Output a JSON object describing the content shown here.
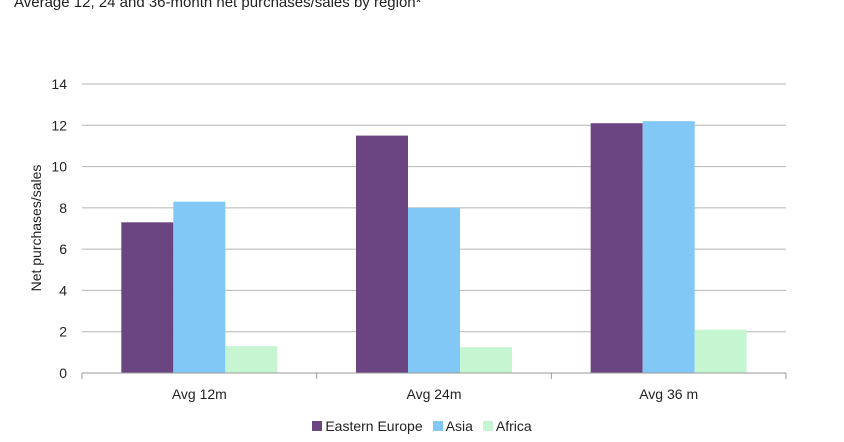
{
  "title": "Average 12, 24 and 36-month net purchases/sales by region*",
  "chart_data": {
    "type": "bar",
    "title": "Average 12, 24 and 36-month net purchases/sales by region*",
    "xlabel": "",
    "ylabel": "Net purchases/sales",
    "ylim": [
      0,
      14
    ],
    "yticks": [
      0,
      2,
      4,
      6,
      8,
      10,
      12,
      14
    ],
    "grid": true,
    "legend_position": "bottom",
    "categories": [
      "Avg 12m",
      "Avg 24m",
      "Avg 36 m"
    ],
    "series": [
      {
        "name": "Eastern Europe",
        "color": "#6b4482",
        "values": [
          7.3,
          11.5,
          12.1
        ]
      },
      {
        "name": "Asia",
        "color": "#82c8f7",
        "values": [
          8.3,
          8.0,
          12.2
        ]
      },
      {
        "name": "Africa",
        "color": "#c6f5d2",
        "values": [
          1.3,
          1.25,
          2.1
        ]
      }
    ]
  }
}
